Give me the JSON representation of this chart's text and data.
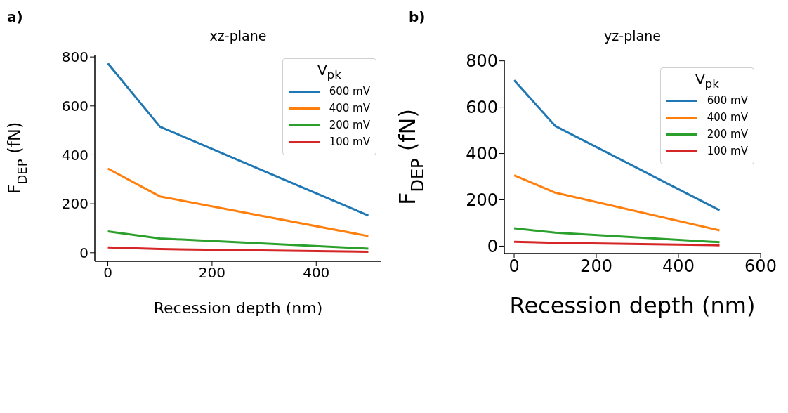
{
  "chart_data": [
    {
      "type": "line",
      "title": "xz-plane",
      "xlabel": "Recession depth (nm)",
      "ylabel": "F$_{DEP}$ (fN)",
      "legend_title": "V$_{pk}$",
      "annotations": [
        "a)"
      ],
      "x": [
        0,
        100,
        500
      ],
      "series": [
        {
          "name": "600 mV",
          "color": "#1f77b4",
          "values": [
            774,
            515,
            152
          ]
        },
        {
          "name": "400 mV",
          "color": "#ff7f0e",
          "values": [
            344,
            230,
            68
          ]
        },
        {
          "name": "200 mV",
          "color": "#2ca02c",
          "values": [
            87,
            58,
            17
          ]
        },
        {
          "name": "100 mV",
          "color": "#d62728",
          "values": [
            22,
            15,
            4
          ]
        }
      ],
      "xlim": [
        -25,
        525
      ],
      "xticks": [
        0,
        200,
        400
      ],
      "ylim": [
        -35,
        809
      ],
      "yticks": [
        0,
        200,
        400,
        600,
        800
      ],
      "legend": "top right",
      "grid": false
    },
    {
      "type": "line",
      "title": "yz-plane",
      "xlabel": "Recession depth (nm)",
      "ylabel": "F$_{DEP}$ (fN)",
      "legend_title": "V$_{pk}$",
      "annotations": [
        "b)"
      ],
      "x": [
        0,
        100,
        500
      ],
      "series": [
        {
          "name": "600 mV",
          "color": "#1f77b4",
          "values": [
            716,
            519,
            155
          ]
        },
        {
          "name": "400 mV",
          "color": "#ff7f0e",
          "values": [
            306,
            231,
            68
          ]
        },
        {
          "name": "200 mV",
          "color": "#2ca02c",
          "values": [
            77,
            58,
            17
          ]
        },
        {
          "name": "100 mV",
          "color": "#d62728",
          "values": [
            19,
            14,
            4
          ]
        }
      ],
      "xlim": [
        -24,
        600
      ],
      "xticks": [
        0,
        200,
        400,
        600
      ],
      "ylim": [
        -32,
        802
      ],
      "yticks": [
        0,
        200,
        400,
        600,
        800
      ],
      "legend": "top right",
      "grid": false
    }
  ]
}
